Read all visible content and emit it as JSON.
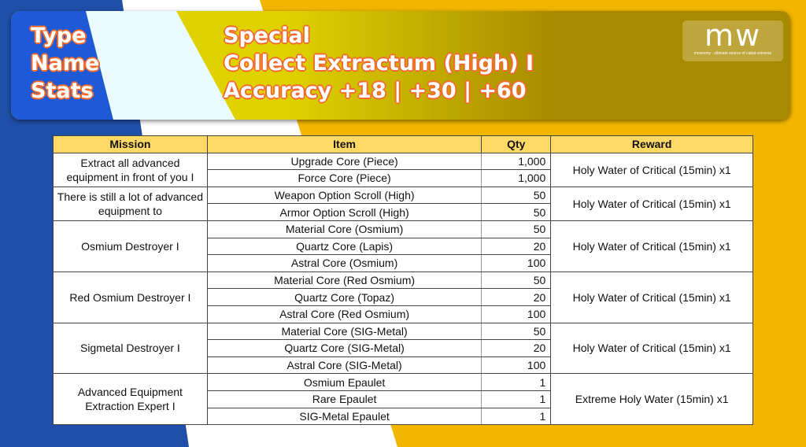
{
  "banner": {
    "labels": [
      "Type",
      "Name",
      "Stats"
    ],
    "values": [
      "Special",
      "Collect Extractum (High) I",
      "Accuracy +18 | +30 | +60"
    ],
    "logo": {
      "main": "mw",
      "tagline": "mcwormy . ultimate source of cabal universe"
    }
  },
  "colors": {
    "blue": "#1f4fa8",
    "yellow": "#f2b600",
    "header": "#ffd966",
    "text_outline": "#f26a2e"
  },
  "table": {
    "headers": [
      "Mission",
      "Item",
      "Qty",
      "Reward"
    ],
    "groups": [
      {
        "mission": "Extract all advanced equipment in front of you I",
        "reward": "Holy Water of Critical (15min) x1",
        "items": [
          {
            "name": "Upgrade Core (Piece)",
            "qty": "1,000"
          },
          {
            "name": "Force Core (Piece)",
            "qty": "1,000"
          }
        ]
      },
      {
        "mission": "There is still a lot of advanced equipment to",
        "reward": "Holy Water of Critical (15min) x1",
        "items": [
          {
            "name": "Weapon Option Scroll (High)",
            "qty": "50"
          },
          {
            "name": "Armor Option Scroll (High)",
            "qty": "50"
          }
        ]
      },
      {
        "mission": "Osmium Destroyer I",
        "reward": "Holy Water of Critical (15min) x1",
        "items": [
          {
            "name": "Material Core (Osmium)",
            "qty": "50"
          },
          {
            "name": "Quartz Core (Lapis)",
            "qty": "20"
          },
          {
            "name": "Astral Core (Osmium)",
            "qty": "100"
          }
        ]
      },
      {
        "mission": "Red Osmium Destroyer I",
        "reward": "Holy Water of Critical (15min) x1",
        "items": [
          {
            "name": "Material Core (Red Osmium)",
            "qty": "50"
          },
          {
            "name": "Quartz Core (Topaz)",
            "qty": "20"
          },
          {
            "name": "Astral Core (Red Osmium)",
            "qty": "100"
          }
        ]
      },
      {
        "mission": "Sigmetal Destroyer I",
        "reward": "Holy Water of Critical (15min) x1",
        "items": [
          {
            "name": "Material Core (SIG-Metal)",
            "qty": "50"
          },
          {
            "name": "Quartz Core (SIG-Metal)",
            "qty": "20"
          },
          {
            "name": "Astral Core (SIG-Metal)",
            "qty": "100"
          }
        ]
      },
      {
        "mission": "Advanced Equipment Extraction Expert I",
        "reward": "Extreme Holy Water (15min) x1",
        "items": [
          {
            "name": "Osmium Epaulet",
            "qty": "1"
          },
          {
            "name": "Rare Epaulet",
            "qty": "1"
          },
          {
            "name": "SIG-Metal Epaulet",
            "qty": "1"
          }
        ]
      }
    ]
  }
}
